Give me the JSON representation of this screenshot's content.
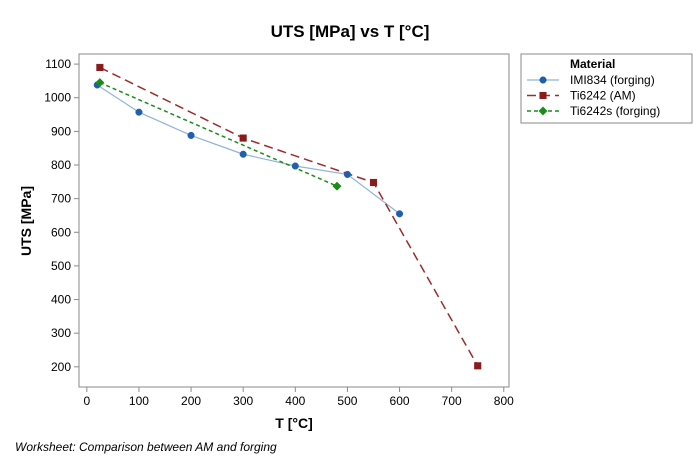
{
  "chart_data": {
    "type": "line",
    "title": "UTS [MPa] vs T [°C]",
    "xlabel": "T [°C]",
    "ylabel": "UTS [MPa]",
    "xlim": [
      -15,
      810
    ],
    "ylim": [
      140,
      1130
    ],
    "xticks": [
      0,
      100,
      200,
      300,
      400,
      500,
      600,
      700,
      800
    ],
    "yticks": [
      200,
      300,
      400,
      500,
      600,
      700,
      800,
      900,
      1000,
      1100
    ],
    "grid": false,
    "legend_title": "Material",
    "legend_position": "right",
    "series": [
      {
        "name": "IMI834 (forging)",
        "color": "#1f5fae",
        "line_color": "#8fb3dc",
        "marker": "circle",
        "dash": "solid",
        "x": [
          20,
          100,
          200,
          300,
          400,
          500,
          600
        ],
        "y": [
          1038,
          957,
          888,
          832,
          797,
          772,
          655
        ]
      },
      {
        "name": "Ti6242 (AM)",
        "color": "#8b1a1a",
        "line_color": "#9e2a2a",
        "marker": "square",
        "dash": "long",
        "x": [
          25,
          300,
          550,
          750
        ],
        "y": [
          1090,
          880,
          748,
          203
        ]
      },
      {
        "name": "Ti6242s (forging)",
        "color": "#1a8c1a",
        "line_color": "#1a8c1a",
        "marker": "diamond",
        "dash": "short",
        "x": [
          25,
          480
        ],
        "y": [
          1045,
          737
        ]
      }
    ]
  },
  "footnote": "Worksheet: Comparison between AM and forging"
}
